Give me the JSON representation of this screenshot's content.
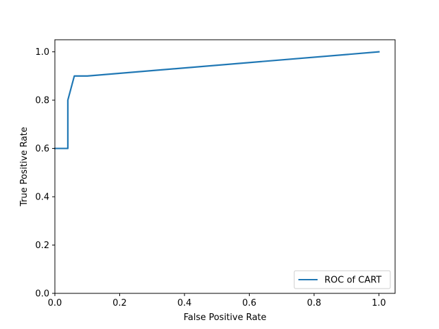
{
  "chart_data": {
    "type": "line",
    "title": "",
    "xlabel": "False Positive Rate",
    "ylabel": "True Positive Rate",
    "xlim": [
      0.0,
      1.05
    ],
    "ylim": [
      0.0,
      1.05
    ],
    "xticks": [
      0.0,
      0.2,
      0.4,
      0.6,
      0.8,
      1.0
    ],
    "yticks": [
      0.0,
      0.2,
      0.4,
      0.6,
      0.8,
      1.0
    ],
    "xtick_labels": [
      "0.0",
      "0.2",
      "0.4",
      "0.6",
      "0.8",
      "1.0"
    ],
    "ytick_labels": [
      "0.0",
      "0.2",
      "0.4",
      "0.6",
      "0.8",
      "1.0"
    ],
    "grid": false,
    "legend_position": "lower-right",
    "series": [
      {
        "name": "ROC of CART",
        "color": "#1f77b4",
        "x": [
          0.0,
          0.04,
          0.04,
          0.06,
          0.1,
          1.0
        ],
        "y": [
          0.6,
          0.6,
          0.8,
          0.9,
          0.9,
          1.0
        ]
      }
    ]
  }
}
